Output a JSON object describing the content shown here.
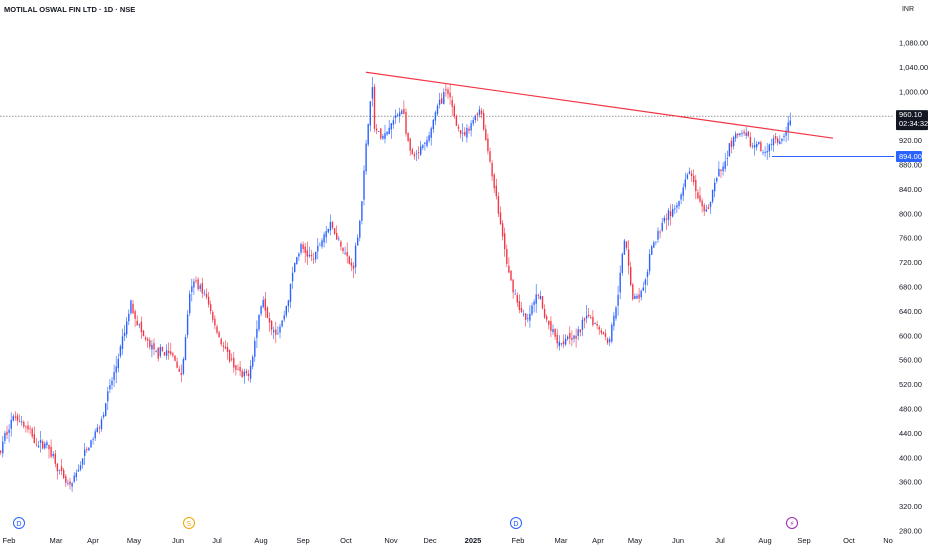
{
  "header": {
    "title": "MOTILAL OSWAL FIN LTD · 1D · NSE",
    "currency": "INR"
  },
  "colors": {
    "up": "#2962ff",
    "down": "#f23645",
    "trendline": "#f23645",
    "support": "#2962ff",
    "grid": "#ffffff"
  },
  "price_tag": {
    "price": "960.10",
    "countdown": "02:34:32"
  },
  "support_tag": {
    "price": "894.00"
  },
  "event_markers": [
    {
      "label": "D",
      "icon": "dividend-icon",
      "at": "Feb",
      "color": "#2962ff"
    },
    {
      "label": "S",
      "icon": "split-icon",
      "at": "Jun",
      "color": "#f0a500"
    },
    {
      "label": "D",
      "icon": "dividend-icon",
      "at": "Feb 2025",
      "color": "#2962ff"
    },
    {
      "label": "⚡",
      "icon": "earnings-icon",
      "at": "Sep 2025",
      "color": "#9c27b0"
    }
  ],
  "chart_data": {
    "type": "candlestick",
    "title": "MOTILAL OSWAL FIN LTD · 1D · NSE",
    "ylim": [
      270,
      1110
    ],
    "y_ticks": [
      "1,080.00",
      "1,040.00",
      "1,000.00",
      "920.00",
      "880.00",
      "840.00",
      "800.00",
      "760.00",
      "720.00",
      "680.00",
      "640.00",
      "600.00",
      "560.00",
      "520.00",
      "480.00",
      "440.00",
      "400.00",
      "360.00",
      "320.00",
      "280.00"
    ],
    "x_ticks": [
      "Feb",
      "Mar",
      "Apr",
      "May",
      "Jun",
      "Jul",
      "Aug",
      "Sep",
      "Oct",
      "Nov",
      "Dec",
      "2025",
      "Feb",
      "Mar",
      "Apr",
      "May",
      "Jun",
      "Jul",
      "Aug",
      "Sep",
      "Oct",
      "No"
    ],
    "last_price": 960.1,
    "support_level": 894.0,
    "trendline": {
      "from": {
        "date": "Oct 2024",
        "price": 1032
      },
      "to": {
        "date": "Sep 2025",
        "price": 924
      }
    },
    "price_path": [
      [
        0,
        410
      ],
      [
        4,
        435
      ],
      [
        10,
        460
      ],
      [
        16,
        470
      ],
      [
        22,
        455
      ],
      [
        30,
        440
      ],
      [
        38,
        420
      ],
      [
        44,
        425
      ],
      [
        52,
        405
      ],
      [
        58,
        380
      ],
      [
        64,
        360
      ],
      [
        70,
        350
      ],
      [
        76,
        375
      ],
      [
        82,
        400
      ],
      [
        90,
        425
      ],
      [
        96,
        445
      ],
      [
        102,
        470
      ],
      [
        108,
        510
      ],
      [
        114,
        540
      ],
      [
        120,
        580
      ],
      [
        126,
        620
      ],
      [
        130,
        655
      ],
      [
        136,
        625
      ],
      [
        142,
        600
      ],
      [
        150,
        580
      ],
      [
        156,
        570
      ],
      [
        162,
        575
      ],
      [
        168,
        570
      ],
      [
        174,
        565
      ],
      [
        180,
        530
      ],
      [
        184,
        580
      ],
      [
        188,
        660
      ],
      [
        194,
        690
      ],
      [
        200,
        680
      ],
      [
        206,
        660
      ],
      [
        212,
        630
      ],
      [
        218,
        600
      ],
      [
        224,
        575
      ],
      [
        230,
        560
      ],
      [
        236,
        545
      ],
      [
        242,
        530
      ],
      [
        248,
        540
      ],
      [
        252,
        570
      ],
      [
        258,
        630
      ],
      [
        262,
        665
      ],
      [
        266,
        640
      ],
      [
        270,
        620
      ],
      [
        276,
        605
      ],
      [
        282,
        625
      ],
      [
        288,
        665
      ],
      [
        294,
        720
      ],
      [
        300,
        745
      ],
      [
        306,
        735
      ],
      [
        312,
        725
      ],
      [
        318,
        745
      ],
      [
        324,
        770
      ],
      [
        330,
        780
      ],
      [
        336,
        765
      ],
      [
        342,
        745
      ],
      [
        348,
        720
      ],
      [
        352,
        710
      ],
      [
        356,
        755
      ],
      [
        360,
        800
      ],
      [
        364,
        880
      ],
      [
        368,
        960
      ],
      [
        371,
        1020
      ],
      [
        374,
        940
      ],
      [
        378,
        930
      ],
      [
        384,
        925
      ],
      [
        390,
        945
      ],
      [
        396,
        960
      ],
      [
        402,
        975
      ],
      [
        408,
        905
      ],
      [
        414,
        890
      ],
      [
        420,
        905
      ],
      [
        426,
        915
      ],
      [
        432,
        950
      ],
      [
        438,
        980
      ],
      [
        444,
        1000
      ],
      [
        450,
        985
      ],
      [
        456,
        945
      ],
      [
        462,
        925
      ],
      [
        468,
        935
      ],
      [
        474,
        960
      ],
      [
        480,
        975
      ],
      [
        484,
        930
      ],
      [
        490,
        880
      ],
      [
        496,
        820
      ],
      [
        502,
        760
      ],
      [
        508,
        700
      ],
      [
        514,
        670
      ],
      [
        520,
        640
      ],
      [
        526,
        620
      ],
      [
        532,
        650
      ],
      [
        538,
        670
      ],
      [
        544,
        630
      ],
      [
        550,
        615
      ],
      [
        556,
        595
      ],
      [
        562,
        590
      ],
      [
        568,
        605
      ],
      [
        574,
        595
      ],
      [
        580,
        610
      ],
      [
        586,
        640
      ],
      [
        592,
        625
      ],
      [
        598,
        615
      ],
      [
        604,
        600
      ],
      [
        608,
        590
      ],
      [
        612,
        620
      ],
      [
        618,
        680
      ],
      [
        624,
        760
      ],
      [
        628,
        720
      ],
      [
        632,
        660
      ],
      [
        638,
        665
      ],
      [
        644,
        680
      ],
      [
        650,
        740
      ],
      [
        656,
        760
      ],
      [
        662,
        790
      ],
      [
        668,
        800
      ],
      [
        674,
        805
      ],
      [
        680,
        825
      ],
      [
        686,
        860
      ],
      [
        690,
        875
      ],
      [
        694,
        835
      ],
      [
        700,
        810
      ],
      [
        706,
        800
      ],
      [
        712,
        840
      ],
      [
        718,
        865
      ],
      [
        724,
        880
      ],
      [
        728,
        910
      ],
      [
        734,
        925
      ],
      [
        740,
        930
      ],
      [
        746,
        925
      ],
      [
        752,
        910
      ],
      [
        758,
        915
      ],
      [
        762,
        895
      ],
      [
        766,
        910
      ],
      [
        772,
        920
      ],
      [
        778,
        915
      ],
      [
        784,
        925
      ],
      [
        790,
        960
      ]
    ]
  }
}
